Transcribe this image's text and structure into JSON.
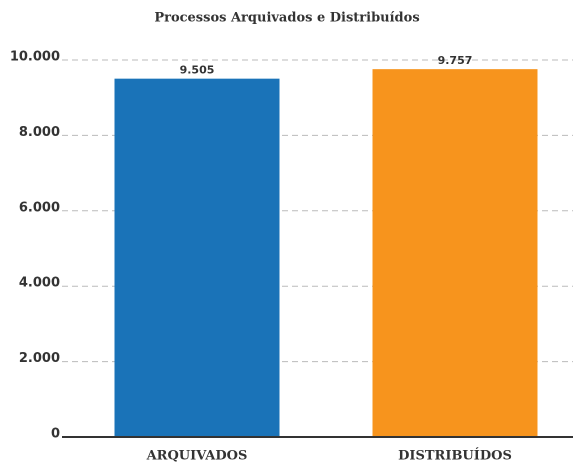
{
  "chart_data": {
    "type": "bar",
    "title": "Processos Arquivados e Distribuídos",
    "categories": [
      "ARQUIVADOS",
      "DISTRIBUÍDOS"
    ],
    "values": [
      9505,
      9757
    ],
    "value_labels": [
      "9.505",
      "9.757"
    ],
    "colors": [
      "#1a73b8",
      "#f7941d"
    ],
    "ylim": [
      0,
      10000
    ],
    "yticks": [
      0,
      {
        "value": 2000,
        "label": "2.000"
      },
      {
        "value": 4000,
        "label": "4.000"
      },
      {
        "value": 6000,
        "label": "6.000"
      },
      {
        "value": 8000,
        "label": "8.000"
      },
      {
        "value": 10000,
        "label": "10.000"
      }
    ],
    "grid": true
  }
}
